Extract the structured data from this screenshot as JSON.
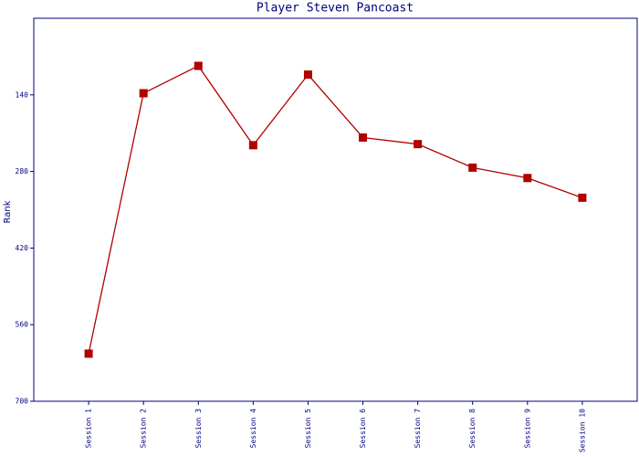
{
  "chart_data": {
    "type": "line",
    "title": "Player Steven Pancoast",
    "y_label": "Rank",
    "categories": [
      "Session 1",
      "Session 2",
      "Session 3",
      "Session 4",
      "Session 5",
      "Session 6",
      "Session 7",
      "Session 8",
      "Session 9",
      "Session 10"
    ],
    "series": [
      {
        "name": "Rank",
        "color": "#b00000",
        "values": [
          613,
          137,
          87,
          232,
          103,
          218,
          230,
          273,
          292,
          328
        ]
      }
    ],
    "ylim": [
      0,
      700
    ],
    "yticks": [
      140,
      280,
      420,
      560,
      700
    ],
    "y_inverted": true,
    "grid": false
  }
}
